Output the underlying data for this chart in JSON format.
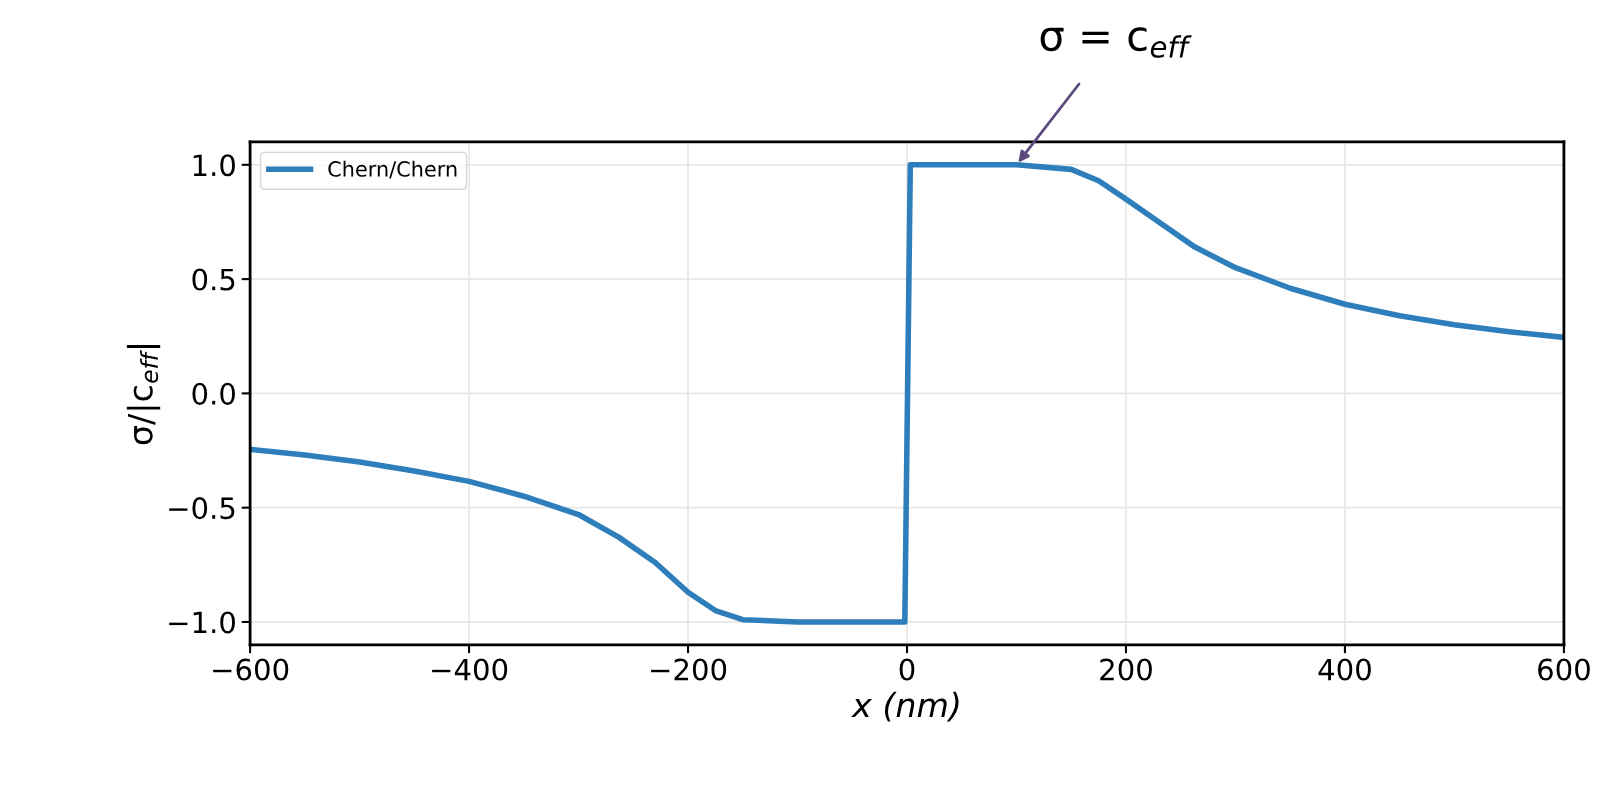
{
  "chart_data": {
    "type": "line",
    "xlabel": "x (nm)",
    "ylabel": "σ/|c$_{eff}$|",
    "series": [
      {
        "name": "Chern/Chern",
        "color": "#2e7ebc",
        "x": [
          -600,
          -550,
          -500,
          -450,
          -400,
          -350,
          -300,
          -263,
          -230,
          -200,
          -175,
          -150,
          -100,
          -2,
          3,
          100,
          150,
          175,
          200,
          230,
          263,
          300,
          350,
          400,
          450,
          500,
          550,
          600
        ],
        "values": [
          -0.245,
          -0.27,
          -0.3,
          -0.34,
          -0.385,
          -0.45,
          -0.53,
          -0.63,
          -0.74,
          -0.87,
          -0.95,
          -0.99,
          -1.0,
          -1.0,
          1.0,
          1.0,
          0.98,
          0.93,
          0.85,
          0.75,
          0.64,
          0.55,
          0.46,
          0.39,
          0.34,
          0.3,
          0.27,
          0.245
        ]
      }
    ],
    "annotations": [
      {
        "text": "σ = c$_{eff}$",
        "x": 100,
        "y": 1.0
      }
    ],
    "xlim": [
      -600,
      600
    ],
    "ylim": [
      -1.1,
      1.1
    ],
    "xticks": [
      {
        "value": -600,
        "label": "−600"
      },
      {
        "value": -400,
        "label": "−400"
      },
      {
        "value": -200,
        "label": "−200"
      },
      0,
      200,
      400,
      600
    ],
    "yticks": [
      {
        "value": -1.0,
        "label": "−1.0"
      },
      {
        "value": -0.5,
        "label": "−0.5"
      },
      {
        "value": 0.0,
        "label": "0.0"
      },
      {
        "value": 0.5,
        "label": "0.5"
      },
      {
        "value": 1.0,
        "label": "1.0"
      }
    ],
    "grid": true,
    "legend": "top left",
    "marker": "none",
    "line_style": "solid"
  }
}
